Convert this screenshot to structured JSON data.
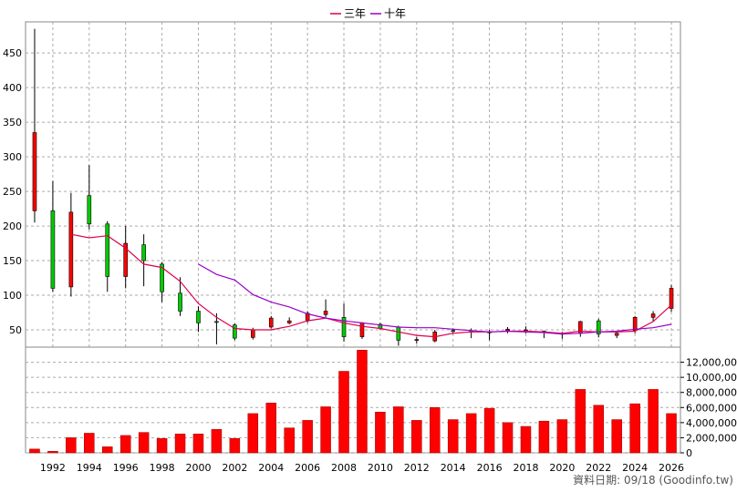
{
  "legend": {
    "items": [
      {
        "label": "三年",
        "color": "#e0004a"
      },
      {
        "label": "十年",
        "color": "#9900cc"
      }
    ]
  },
  "footer": "資料日期: 09/18  (Goodinfo.tw)",
  "colors": {
    "up": "#ff0000",
    "down": "#00cc00",
    "volume": "#ff0000",
    "grid": "#aaaaaa"
  },
  "chart_data": [
    {
      "type": "candlestick",
      "title": "",
      "ylim": [
        25,
        495
      ],
      "yticks": [
        50,
        100,
        150,
        200,
        250,
        300,
        350,
        400,
        450
      ],
      "xlim": [
        1990.5,
        2026.5
      ],
      "xticks": [
        1992,
        1994,
        1996,
        1998,
        2000,
        2002,
        2004,
        2006,
        2008,
        2010,
        2012,
        2014,
        2016,
        2018,
        2020,
        2022,
        2024,
        2026
      ],
      "grid": true,
      "candles": [
        {
          "year": 1991,
          "open": 222,
          "high": 485,
          "low": 205,
          "close": 335
        },
        {
          "year": 1992,
          "open": 222,
          "high": 265,
          "low": 105,
          "close": 110
        },
        {
          "year": 1993,
          "open": 112,
          "high": 248,
          "low": 98,
          "close": 220
        },
        {
          "year": 1994,
          "open": 244,
          "high": 288,
          "low": 195,
          "close": 203
        },
        {
          "year": 1995,
          "open": 203,
          "high": 207,
          "low": 105,
          "close": 127
        },
        {
          "year": 1996,
          "open": 127,
          "high": 200,
          "low": 110,
          "close": 175
        },
        {
          "year": 1997,
          "open": 173,
          "high": 188,
          "low": 113,
          "close": 150
        },
        {
          "year": 1998,
          "open": 145,
          "high": 148,
          "low": 90,
          "close": 105
        },
        {
          "year": 1999,
          "open": 103,
          "high": 126,
          "low": 70,
          "close": 77
        },
        {
          "year": 2000,
          "open": 77,
          "high": 84,
          "low": 47,
          "close": 60
        },
        {
          "year": 2001,
          "open": 62,
          "high": 74,
          "low": 29,
          "close": 61
        },
        {
          "year": 2002,
          "open": 57,
          "high": 59,
          "low": 35,
          "close": 38
        },
        {
          "year": 2003,
          "open": 39,
          "high": 53,
          "low": 36,
          "close": 50
        },
        {
          "year": 2004,
          "open": 54,
          "high": 70,
          "low": 52,
          "close": 67
        },
        {
          "year": 2005,
          "open": 60,
          "high": 68,
          "low": 58,
          "close": 63
        },
        {
          "year": 2006,
          "open": 64,
          "high": 77,
          "low": 60,
          "close": 74
        },
        {
          "year": 2007,
          "open": 72,
          "high": 94,
          "low": 68,
          "close": 77
        },
        {
          "year": 2008,
          "open": 68,
          "high": 88,
          "low": 33,
          "close": 40
        },
        {
          "year": 2009,
          "open": 40,
          "high": 61,
          "low": 37,
          "close": 60
        },
        {
          "year": 2010,
          "open": 58,
          "high": 60,
          "low": 50,
          "close": 52
        },
        {
          "year": 2011,
          "open": 54,
          "high": 56,
          "low": 27,
          "close": 35
        },
        {
          "year": 2012,
          "open": 35,
          "high": 40,
          "low": 30,
          "close": 36
        },
        {
          "year": 2013,
          "open": 34,
          "high": 50,
          "low": 32,
          "close": 47
        },
        {
          "year": 2014,
          "open": 49,
          "high": 52,
          "low": 44,
          "close": 48
        },
        {
          "year": 2015,
          "open": 49,
          "high": 52,
          "low": 38,
          "close": 47
        },
        {
          "year": 2016,
          "open": 47,
          "high": 50,
          "low": 35,
          "close": 47
        },
        {
          "year": 2017,
          "open": 49,
          "high": 54,
          "low": 45,
          "close": 51
        },
        {
          "year": 2018,
          "open": 49,
          "high": 55,
          "low": 45,
          "close": 50
        },
        {
          "year": 2019,
          "open": 48,
          "high": 49,
          "low": 38,
          "close": 46
        },
        {
          "year": 2020,
          "open": 45,
          "high": 47,
          "low": 37,
          "close": 45
        },
        {
          "year": 2021,
          "open": 45,
          "high": 63,
          "low": 40,
          "close": 62
        },
        {
          "year": 2022,
          "open": 63,
          "high": 66,
          "low": 39,
          "close": 44
        },
        {
          "year": 2023,
          "open": 42,
          "high": 47,
          "low": 38,
          "close": 45
        },
        {
          "year": 2024,
          "open": 49,
          "high": 70,
          "low": 45,
          "close": 68
        },
        {
          "year": 2025,
          "open": 68,
          "high": 77,
          "low": 62,
          "close": 73
        },
        {
          "year": 2026,
          "open": 81,
          "high": 115,
          "low": 76,
          "close": 110
        }
      ],
      "series": [
        {
          "name": "三年",
          "color": "#e0004a",
          "x": [
            1993,
            1994,
            1995,
            1996,
            1997,
            1998,
            1999,
            2000,
            2001,
            2002,
            2003,
            2004,
            2005,
            2006,
            2007,
            2008,
            2009,
            2010,
            2011,
            2012,
            2013,
            2014,
            2015,
            2016,
            2017,
            2018,
            2019,
            2020,
            2021,
            2022,
            2023,
            2024,
            2025,
            2026
          ],
          "y": [
            188,
            183,
            186,
            168,
            145,
            140,
            120,
            88,
            68,
            52,
            50,
            50,
            55,
            63,
            67,
            60,
            55,
            52,
            47,
            42,
            40,
            45,
            47,
            47,
            48,
            48,
            47,
            45,
            48,
            47,
            47,
            48,
            62,
            86
          ]
        },
        {
          "name": "十年",
          "color": "#9900cc",
          "x": [
            2000,
            2001,
            2002,
            2003,
            2004,
            2005,
            2006,
            2007,
            2008,
            2009,
            2010,
            2011,
            2012,
            2013,
            2014,
            2015,
            2016,
            2017,
            2018,
            2019,
            2020,
            2021,
            2022,
            2023,
            2024,
            2025,
            2026
          ],
          "y": [
            145,
            130,
            122,
            101,
            90,
            83,
            73,
            67,
            63,
            60,
            57,
            54,
            53,
            53,
            51,
            49,
            47,
            48,
            47,
            46,
            44,
            45,
            47,
            48,
            51,
            53,
            58
          ]
        }
      ]
    },
    {
      "type": "bar",
      "title": "",
      "ylim": [
        0,
        14000000
      ],
      "yticks": [
        0,
        2000000,
        4000000,
        6000000,
        8000000,
        10000000,
        12000000
      ],
      "ytick_labels": [
        "0",
        "2,000,000",
        "4,000,000",
        "6,000,000",
        "8,000,000",
        "10,000,000",
        "12,000,000"
      ],
      "categories": [
        1991,
        1992,
        1993,
        1994,
        1995,
        1996,
        1997,
        1998,
        1999,
        2000,
        2001,
        2002,
        2003,
        2004,
        2005,
        2006,
        2007,
        2008,
        2009,
        2010,
        2011,
        2012,
        2013,
        2014,
        2015,
        2016,
        2017,
        2018,
        2019,
        2020,
        2021,
        2022,
        2023,
        2024,
        2025,
        2026
      ],
      "values": [
        500000,
        200000,
        2000000,
        2600000,
        800000,
        2300000,
        2700000,
        1900000,
        2500000,
        2500000,
        3100000,
        1900000,
        5200000,
        6600000,
        3300000,
        4300000,
        6100000,
        10800000,
        13600000,
        5400000,
        6100000,
        4300000,
        6000000,
        4400000,
        5200000,
        5900000,
        4000000,
        3500000,
        4200000,
        4400000,
        8400000,
        6300000,
        4400000,
        6500000,
        8400000,
        5200000
      ]
    }
  ]
}
